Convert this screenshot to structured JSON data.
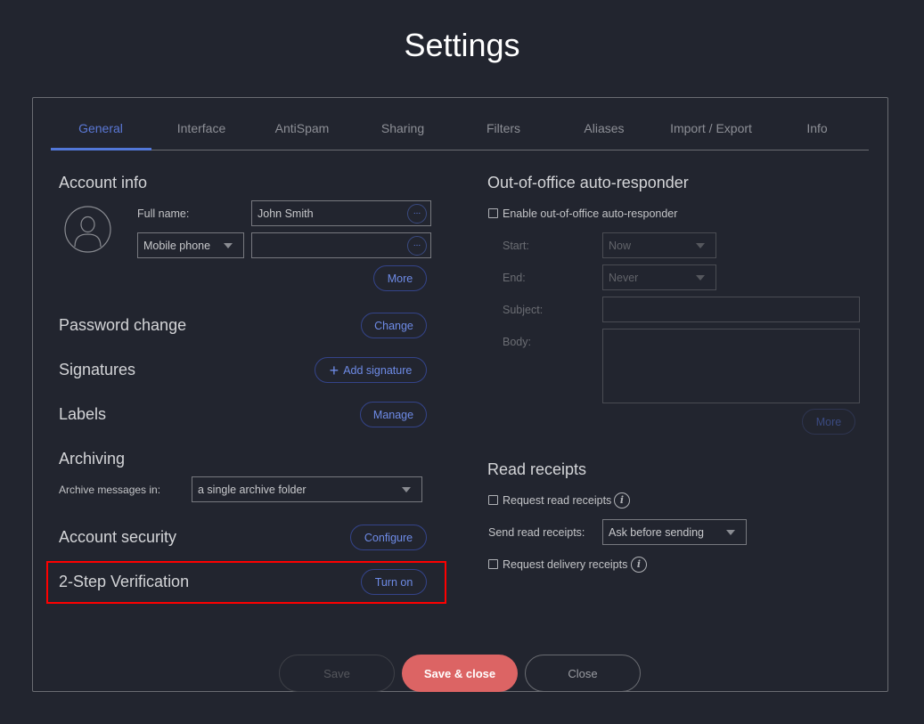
{
  "title": "Settings",
  "tabs": [
    "General",
    "Interface",
    "AntiSpam",
    "Sharing",
    "Filters",
    "Aliases",
    "Import / Export",
    "Info"
  ],
  "account_info": {
    "heading": "Account info",
    "full_name_label": "Full name:",
    "full_name_value": "John Smith",
    "phone_type": "Mobile phone",
    "phone_value": "",
    "dots": "...",
    "more": "More"
  },
  "password": {
    "heading": "Password change",
    "button": "Change"
  },
  "signatures": {
    "heading": "Signatures",
    "button": "Add signature"
  },
  "labels": {
    "heading": "Labels",
    "button": "Manage"
  },
  "archiving": {
    "heading": "Archiving",
    "label": "Archive messages in:",
    "value": "a single archive folder"
  },
  "security": {
    "heading": "Account security",
    "button": "Configure"
  },
  "two_step": {
    "heading": "2-Step Verification",
    "button": "Turn on",
    "highlight_color": "#ff0000"
  },
  "ooo": {
    "heading": "Out-of-office auto-responder",
    "enable": "Enable out-of-office auto-responder",
    "start_label": "Start:",
    "start_value": "Now",
    "end_label": "End:",
    "end_value": "Never",
    "subject_label": "Subject:",
    "body_label": "Body:",
    "more": "More"
  },
  "receipts": {
    "heading": "Read receipts",
    "request": "Request read receipts",
    "send_label": "Send read receipts:",
    "send_value": "Ask before sending",
    "delivery": "Request delivery receipts"
  },
  "footer": {
    "save": "Save",
    "save_close": "Save & close",
    "close": "Close"
  },
  "colors": {
    "accent": "#5277d8",
    "primary_button": "#dc6464",
    "background": "#22252f"
  }
}
